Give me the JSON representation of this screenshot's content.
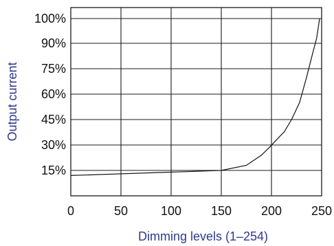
{
  "chart_data": {
    "type": "line",
    "title": "",
    "xlabel": "Dimming levels (1–254)",
    "ylabel": "Output current",
    "xlim": [
      0,
      250
    ],
    "x_ticks": [
      0,
      50,
      100,
      150,
      200,
      250
    ],
    "y_ticks": [
      "15%",
      "30%",
      "45%",
      "60%",
      "75%",
      "90%",
      "100%"
    ],
    "grid": true,
    "legend": "none",
    "series": [
      {
        "points": [
          {
            "x": 0,
            "y": "12%"
          },
          {
            "x": 150,
            "y": "15%"
          },
          {
            "x": 175,
            "y": "18%"
          },
          {
            "x": 190,
            "y": "24%"
          },
          {
            "x": 197,
            "y": "28%"
          },
          {
            "x": 205,
            "y": "33%"
          },
          {
            "x": 213,
            "y": "38%"
          },
          {
            "x": 220,
            "y": "45%"
          },
          {
            "x": 228,
            "y": "55%"
          },
          {
            "x": 235,
            "y": "70%"
          },
          {
            "x": 241,
            "y": "84%"
          },
          {
            "x": 245,
            "y": "92%"
          },
          {
            "x": 248,
            "y": "100%"
          }
        ]
      }
    ]
  }
}
